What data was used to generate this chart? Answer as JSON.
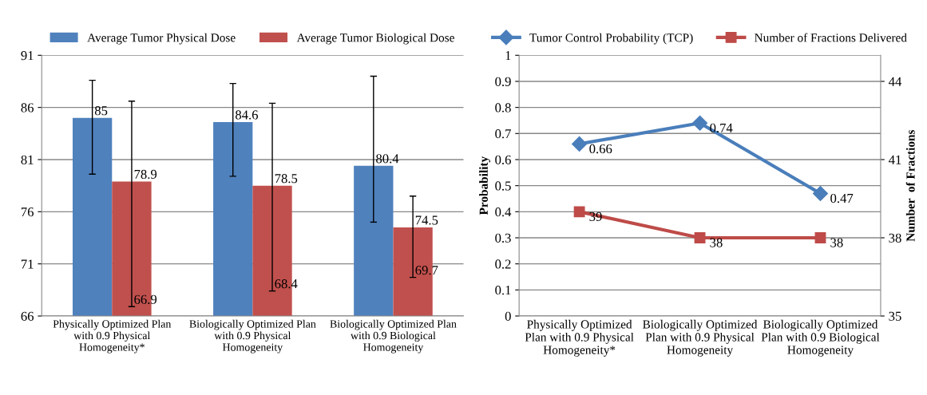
{
  "chart_data": [
    {
      "type": "bar",
      "categories": [
        "Physically Optimized Plan\nwith 0.9 Physical\nHomogeneity*",
        "Biologically Optimized Plan\nwith 0.9 Physical\nHomogeneity",
        "Biologically Optimized Plan\nwith 0.9 Biological\nHomogeneity"
      ],
      "series": [
        {
          "name": "Average Tumor Physical Dose",
          "color": "#4f81bd",
          "values": [
            85,
            84.6,
            80.4
          ],
          "errors": [
            [
              79.6,
              88.6
            ],
            [
              79.4,
              88.3
            ],
            [
              75.0,
              89.0
            ]
          ]
        },
        {
          "name": "Average Tumor Biological Dose",
          "color": "#c0504d",
          "values": [
            78.9,
            78.5,
            74.5
          ],
          "errors": [
            [
              66.9,
              86.6
            ],
            [
              68.4,
              86.4
            ],
            [
              69.7,
              77.5
            ]
          ]
        }
      ],
      "ylim": [
        66,
        91
      ],
      "yticks": [
        66,
        71,
        76,
        81,
        86,
        91
      ],
      "grid": "y",
      "legend": "top",
      "data_labels": true,
      "annotations": [
        "66.9",
        "68.4",
        "69.7"
      ]
    },
    {
      "type": "line",
      "categories": [
        "Physically Optimized\nPlan with 0.9 Physical\nHomogeneity*",
        "Biologically Optimized\nPlan with 0.9 Physical\nHomogeneity",
        "Biologically Optimized\nPlan with 0.9 Biological\nHomogeneity"
      ],
      "series": [
        {
          "name": "Tumor Control Probability (TCP)",
          "color": "#4a7ebb",
          "values": [
            0.66,
            0.74,
            0.47
          ],
          "marker": "diamond"
        },
        {
          "name": "Number of Fractions Delivered",
          "color": "#be4b48",
          "values": [
            39,
            38,
            38
          ],
          "marker": "square",
          "axis": "y2"
        }
      ],
      "ylabel": "Probability",
      "y2label": "Number  of Fractions",
      "ylim": [
        0,
        1
      ],
      "yticks": [
        0,
        0.1,
        0.2,
        0.3,
        0.4,
        0.5,
        0.6,
        0.7,
        0.8,
        0.9,
        1
      ],
      "y2lim": [
        35,
        45
      ],
      "y2ticks": [
        35,
        38,
        41,
        44
      ],
      "grid": "y",
      "legend": "top",
      "data_labels": true
    }
  ]
}
